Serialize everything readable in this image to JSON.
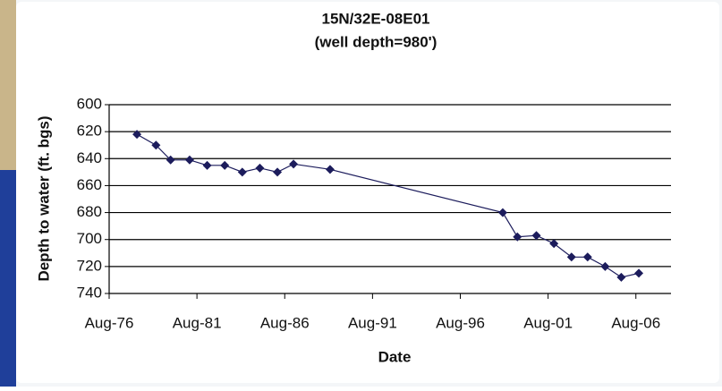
{
  "chart_data": {
    "type": "line",
    "title": "15N/32E-08E01",
    "subtitle": "(well depth=980')",
    "x_label": "Date",
    "y_label": "Depth to water (ft. bgs)",
    "x": [
      "1978-03",
      "1979-04",
      "1980-02",
      "1981-03",
      "1982-03",
      "1983-03",
      "1984-03",
      "1985-03",
      "1986-03",
      "1987-02",
      "1989-03",
      "1999-01",
      "1999-11",
      "2000-12",
      "2001-12",
      "2002-12",
      "2003-11",
      "2004-11",
      "2005-10",
      "2006-10"
    ],
    "series": [
      {
        "name": "15N/32E-08E01",
        "color": "#1c1c5c",
        "values": [
          622,
          630,
          641,
          641,
          645,
          645,
          650,
          647,
          650,
          644,
          648,
          680,
          698,
          697,
          703,
          713,
          713,
          720,
          728,
          725
        ]
      }
    ],
    "xlim": [
      "1976-08",
      "2008-08"
    ],
    "xticks": [
      {
        "value": "1976-08",
        "label": "Aug-76"
      },
      {
        "value": "1981-08",
        "label": "Aug-81"
      },
      {
        "value": "1986-08",
        "label": "Aug-86"
      },
      {
        "value": "1991-08",
        "label": "Aug-91"
      },
      {
        "value": "1996-08",
        "label": "Aug-96"
      },
      {
        "value": "2001-08",
        "label": "Aug-01"
      },
      {
        "value": "2006-08",
        "label": "Aug-06"
      }
    ],
    "ylim": [
      600,
      740
    ],
    "yticks": [
      600,
      620,
      640,
      660,
      680,
      700,
      720,
      740
    ],
    "y_inverted": true,
    "grid": true
  }
}
